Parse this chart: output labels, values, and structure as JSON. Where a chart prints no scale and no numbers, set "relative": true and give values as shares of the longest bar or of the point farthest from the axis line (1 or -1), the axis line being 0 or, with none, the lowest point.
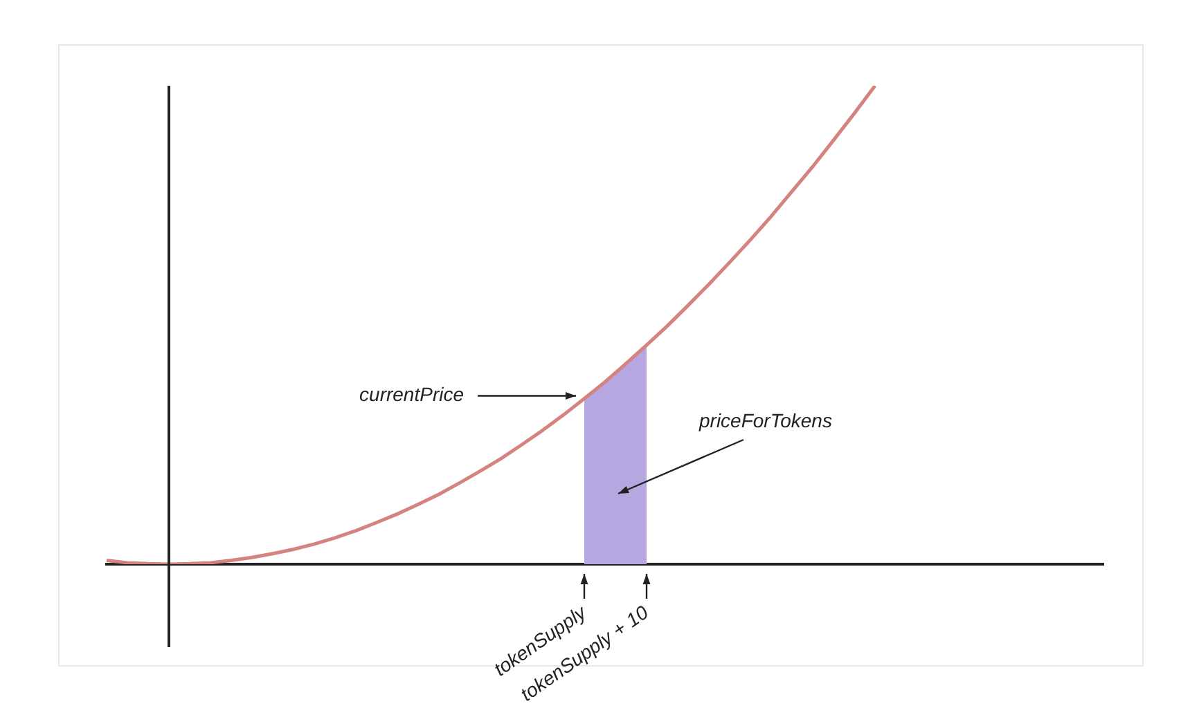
{
  "chart_data": {
    "type": "line",
    "relative": true,
    "categories": [
      null,
      null,
      null,
      null,
      null,
      null,
      null,
      null,
      null,
      null,
      null,
      null,
      null,
      null,
      null,
      null,
      null,
      null,
      null,
      null,
      null,
      null,
      null,
      "tokenSupply",
      null,
      null,
      "tokenSupply + 10",
      null,
      null,
      null,
      null,
      null,
      null,
      null,
      null,
      null,
      null,
      null,
      null,
      null,
      null,
      null,
      null,
      null,
      null,
      null,
      null,
      null,
      null
    ],
    "series": [
      {
        "color": "#d4837f",
        "values": [
          0.008,
          0.003,
          0.001,
          0,
          0.001,
          0.003,
          0.008,
          0.014,
          0.022,
          0.031,
          0.042,
          0.055,
          0.07,
          0.087,
          0.105,
          0.125,
          0.146,
          0.17,
          0.195,
          0.221,
          0.25,
          0.28,
          0.312,
          0.346,
          0.381,
          0.419,
          0.458,
          0.498,
          0.541,
          0.585,
          0.631,
          0.678,
          0.727,
          0.779,
          0.831,
          0.886,
          0.942,
          1,
          null,
          null,
          null,
          null,
          null,
          null,
          null,
          null,
          null,
          null,
          null
        ]
      },
      {
        "type": "area",
        "color": "#b7a7e0",
        "values": [
          null,
          null,
          null,
          null,
          null,
          null,
          null,
          null,
          null,
          null,
          null,
          null,
          null,
          null,
          null,
          null,
          null,
          null,
          null,
          null,
          null,
          null,
          null,
          0.346,
          0.381,
          0.419,
          0.458,
          null,
          null,
          null,
          null,
          null,
          null,
          null,
          null,
          null,
          null,
          null,
          null,
          null,
          null,
          null,
          null,
          null,
          null,
          null,
          null,
          null,
          null
        ]
      }
    ],
    "annotations": [
      "currentPrice",
      "priceForTokens"
    ]
  }
}
